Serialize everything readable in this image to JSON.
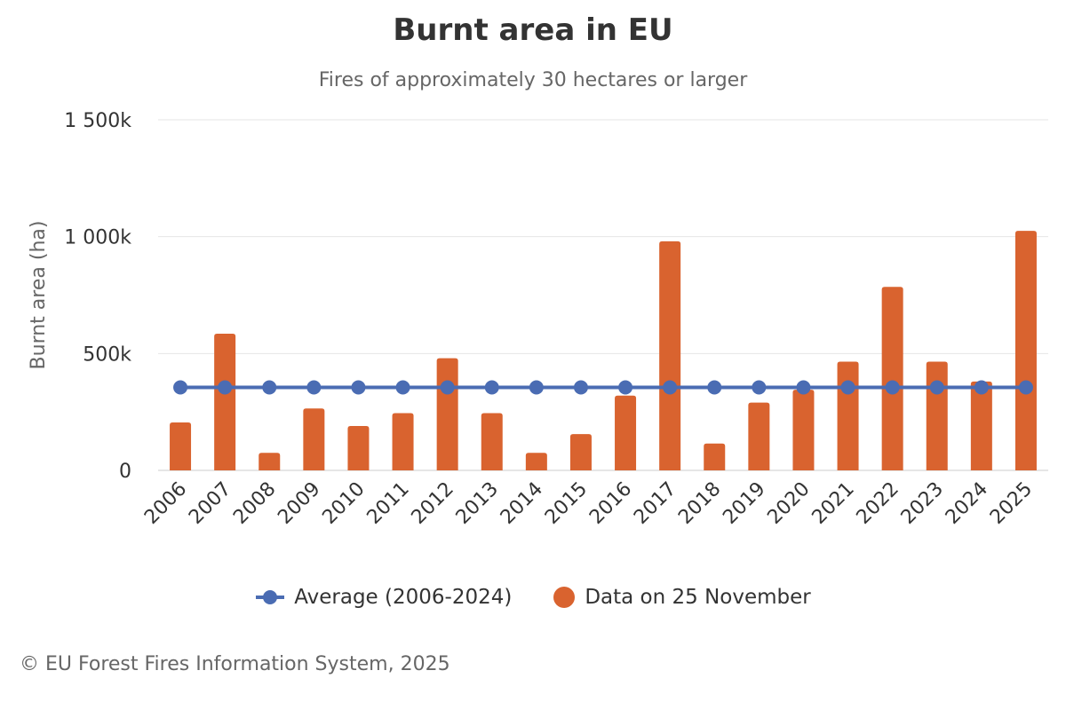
{
  "title": "Burnt area in EU",
  "subtitle": "Fires of approximately 30 hectares or larger",
  "credits": "© EU Forest Fires Information System, 2025",
  "colors": {
    "bars": "#d9632f",
    "average": "#4a6cb3",
    "grid": "#e6e6e6"
  },
  "chart_data": {
    "type": "bar",
    "title": "Burnt area in EU",
    "subtitle": "Fires of approximately 30 hectares or larger",
    "ylabel": "Burnt area (ha)",
    "xlabel": "",
    "ylim": [
      0,
      1500000
    ],
    "yticks": [
      0,
      500000,
      1000000,
      1500000
    ],
    "ytick_labels": [
      "0",
      "500k",
      "1 000k",
      "1 500k"
    ],
    "grid": true,
    "legend_position": "bottom",
    "categories": [
      "2006",
      "2007",
      "2008",
      "2009",
      "2010",
      "2011",
      "2012",
      "2013",
      "2014",
      "2015",
      "2016",
      "2017",
      "2018",
      "2019",
      "2020",
      "2021",
      "2022",
      "2023",
      "2024",
      "2025"
    ],
    "series": [
      {
        "name": "Data on 25 November",
        "type": "bar",
        "values": [
          205000,
          585000,
          75000,
          265000,
          190000,
          245000,
          480000,
          245000,
          75000,
          155000,
          320000,
          980000,
          115000,
          290000,
          345000,
          465000,
          785000,
          465000,
          380000,
          1025000
        ]
      },
      {
        "name": "Average (2006-2024)",
        "type": "line",
        "values": [
          355000,
          355000,
          355000,
          355000,
          355000,
          355000,
          355000,
          355000,
          355000,
          355000,
          355000,
          355000,
          355000,
          355000,
          355000,
          355000,
          355000,
          355000,
          355000,
          355000
        ]
      }
    ]
  }
}
